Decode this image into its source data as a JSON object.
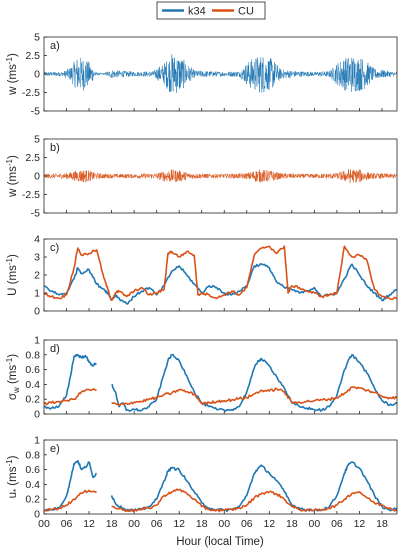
{
  "legend": {
    "entries": [
      {
        "name": "k34",
        "color": "#1f77b4"
      },
      {
        "name": "CU",
        "color": "#d95319"
      }
    ]
  },
  "xaxis": {
    "label": "Hour (local Time)",
    "ticks": [
      {
        "value": 0,
        "label": "00"
      },
      {
        "value": 6,
        "label": "06"
      },
      {
        "value": 12,
        "label": "12"
      },
      {
        "value": 18,
        "label": "18"
      },
      {
        "value": 24,
        "label": "00"
      },
      {
        "value": 30,
        "label": "06"
      },
      {
        "value": 36,
        "label": "12"
      },
      {
        "value": 42,
        "label": "18"
      },
      {
        "value": 48,
        "label": "00"
      },
      {
        "value": 54,
        "label": "06"
      },
      {
        "value": 60,
        "label": "12"
      },
      {
        "value": 66,
        "label": "18"
      },
      {
        "value": 72,
        "label": "00"
      },
      {
        "value": 78,
        "label": "06"
      },
      {
        "value": 84,
        "label": "12"
      },
      {
        "value": 90,
        "label": "18"
      }
    ],
    "range": [
      0,
      94
    ]
  },
  "colors": {
    "k34": "#1f77b4",
    "CU": "#d95319",
    "axis": "#262626"
  },
  "chart_data": [
    {
      "type": "line",
      "panel": "a)",
      "ylabel": "w (ms",
      "ylabel_sup": "-1",
      "ylabel_close": ")",
      "ylim": [
        -5,
        5
      ],
      "yticks": [
        -5,
        -2.5,
        0,
        2.5,
        5
      ],
      "ytick_labels": [
        "-5",
        "-2.5",
        "0",
        "2.5",
        "5"
      ],
      "series": [
        {
          "name": "k34",
          "kind": "turbulence",
          "envelope": [
            [
              0,
              0.3
            ],
            [
              5,
              0.3
            ],
            [
              7,
              0.9
            ],
            [
              9,
              2.4
            ],
            [
              11,
              2.2
            ],
            [
              13,
              1.0
            ],
            [
              14,
              0.2
            ],
            [
              16,
              0.1
            ],
            [
              17,
              0.4
            ],
            [
              18,
              0.6
            ],
            [
              19,
              0.5
            ],
            [
              22,
              0.4
            ],
            [
              25,
              0.3
            ],
            [
              29,
              0.4
            ],
            [
              32,
              1.5
            ],
            [
              34,
              2.8
            ],
            [
              36,
              2.6
            ],
            [
              38,
              1.5
            ],
            [
              40,
              0.5
            ],
            [
              44,
              0.4
            ],
            [
              48,
              0.3
            ],
            [
              52,
              0.4
            ],
            [
              55,
              2.0
            ],
            [
              58,
              2.7
            ],
            [
              61,
              2.0
            ],
            [
              63,
              0.7
            ],
            [
              67,
              0.4
            ],
            [
              72,
              0.3
            ],
            [
              76,
              0.4
            ],
            [
              79,
              2.0
            ],
            [
              82,
              2.6
            ],
            [
              85,
              2.2
            ],
            [
              88,
              0.7
            ],
            [
              92,
              0.4
            ],
            [
              94,
              0.3
            ]
          ]
        }
      ]
    },
    {
      "type": "line",
      "panel": "b)",
      "ylabel": "w (ms",
      "ylabel_sup": "-1",
      "ylabel_close": ")",
      "ylim": [
        -5,
        5
      ],
      "yticks": [
        -5,
        -2.5,
        0,
        2.5,
        5
      ],
      "ytick_labels": [
        "-5",
        "-2.5",
        "0",
        "2.5",
        "5"
      ],
      "series": [
        {
          "name": "CU",
          "kind": "turbulence",
          "envelope": [
            [
              0,
              0.3
            ],
            [
              6,
              0.4
            ],
            [
              9,
              0.8
            ],
            [
              11,
              0.9
            ],
            [
              14,
              0.4
            ],
            [
              18,
              0.3
            ],
            [
              24,
              0.3
            ],
            [
              30,
              0.4
            ],
            [
              33,
              0.9
            ],
            [
              36,
              0.8
            ],
            [
              39,
              0.4
            ],
            [
              44,
              0.3
            ],
            [
              48,
              0.3
            ],
            [
              54,
              0.4
            ],
            [
              57,
              0.9
            ],
            [
              60,
              0.8
            ],
            [
              63,
              0.4
            ],
            [
              68,
              0.3
            ],
            [
              72,
              0.3
            ],
            [
              78,
              0.4
            ],
            [
              81,
              1.0
            ],
            [
              84,
              0.9
            ],
            [
              87,
              0.4
            ],
            [
              94,
              0.3
            ]
          ]
        }
      ]
    },
    {
      "type": "line",
      "panel": "c)",
      "ylabel": "U (ms",
      "ylabel_sup": "-1",
      "ylabel_close": ")",
      "ylim": [
        0,
        4
      ],
      "yticks": [
        0,
        1,
        2,
        3,
        4
      ],
      "ytick_labels": [
        "0",
        "1",
        "2",
        "3",
        "4"
      ],
      "series": [
        {
          "name": "k34",
          "x": [
            0,
            2,
            4,
            6,
            8,
            9,
            10,
            12,
            14,
            16,
            17,
            18,
            19,
            20,
            22,
            24,
            26,
            28,
            30,
            32,
            34,
            36,
            38,
            40,
            42,
            44,
            46,
            48,
            50,
            52,
            54,
            56,
            58,
            60,
            62,
            64,
            66,
            68,
            70,
            72,
            74,
            76,
            78,
            80,
            82,
            84,
            86,
            88,
            90,
            92,
            94
          ],
          "values": [
            1.4,
            1.1,
            0.9,
            1.0,
            1.8,
            2.4,
            2.1,
            2.3,
            1.5,
            1.2,
            1.0,
            0.6,
            0.9,
            0.7,
            0.4,
            0.8,
            1.1,
            1.3,
            0.9,
            1.4,
            2.2,
            2.5,
            2.0,
            1.5,
            1.0,
            1.4,
            1.3,
            1.0,
            0.9,
            1.1,
            1.4,
            2.5,
            2.6,
            2.4,
            1.6,
            1.3,
            1.2,
            1.0,
            1.1,
            1.3,
            0.8,
            0.9,
            1.0,
            1.8,
            2.6,
            2.0,
            1.4,
            1.0,
            0.6,
            0.9,
            1.2
          ]
        },
        {
          "name": "CU",
          "x": [
            0,
            2,
            4,
            6,
            8,
            9,
            10,
            12,
            14,
            16,
            17,
            18,
            19,
            20,
            22,
            24,
            26,
            28,
            30,
            32,
            33,
            34,
            36,
            38,
            40,
            41,
            42,
            44,
            46,
            48,
            50,
            52,
            54,
            56,
            58,
            60,
            62,
            64,
            65,
            66,
            68,
            70,
            72,
            74,
            76,
            78,
            80,
            82,
            84,
            86,
            88,
            90,
            92,
            94
          ],
          "values": [
            1.0,
            0.8,
            0.7,
            0.9,
            2.4,
            3.5,
            3.1,
            3.2,
            3.4,
            1.8,
            1.2,
            0.6,
            1.0,
            1.1,
            0.8,
            1.1,
            1.3,
            0.9,
            1.0,
            1.2,
            3.2,
            3.3,
            3.0,
            3.3,
            3.1,
            0.9,
            1.0,
            0.9,
            0.7,
            0.9,
            1.1,
            0.9,
            1.3,
            3.1,
            3.5,
            3.6,
            3.2,
            3.6,
            1.0,
            1.4,
            1.3,
            1.1,
            1.0,
            0.8,
            0.9,
            1.0,
            3.6,
            3.0,
            3.1,
            2.8,
            1.2,
            0.8,
            0.7,
            0.7
          ]
        }
      ]
    },
    {
      "type": "line",
      "panel": "d)",
      "ylabel": "σ",
      "ylabel_sub": "w",
      "ylabel_rest": " (ms",
      "ylabel_sup": "-1",
      "ylabel_close": ")",
      "ylim": [
        0,
        1
      ],
      "yticks": [
        0,
        0.2,
        0.4,
        0.6,
        0.8,
        1
      ],
      "ytick_labels": [
        "0",
        "0.2",
        "0.4",
        "0.6",
        "0.8",
        "1"
      ],
      "series": [
        {
          "name": "k34",
          "x": [
            0,
            2,
            4,
            6,
            7,
            8,
            9,
            10,
            11,
            12,
            13,
            14,
            16,
            18,
            19,
            20,
            21,
            22,
            24,
            26,
            28,
            30,
            32,
            33,
            34,
            36,
            38,
            40,
            42,
            44,
            46,
            48,
            50,
            52,
            54,
            56,
            57,
            58,
            60,
            62,
            64,
            66,
            68,
            70,
            72,
            74,
            76,
            78,
            80,
            81,
            82,
            84,
            86,
            88,
            90,
            92,
            94
          ],
          "values": [
            0.1,
            0.08,
            0.1,
            0.25,
            0.5,
            0.78,
            0.8,
            0.76,
            0.79,
            0.7,
            0.66,
            0.68,
            null,
            0.4,
            0.3,
            0.1,
            0.15,
            0.05,
            0.06,
            0.05,
            0.1,
            0.2,
            0.55,
            0.72,
            0.8,
            0.72,
            0.52,
            0.3,
            0.15,
            0.1,
            0.06,
            0.05,
            0.06,
            0.1,
            0.3,
            0.62,
            0.72,
            0.74,
            0.65,
            0.5,
            0.35,
            0.15,
            0.1,
            0.08,
            0.06,
            0.05,
            0.1,
            0.25,
            0.6,
            0.72,
            0.8,
            0.7,
            0.55,
            0.35,
            0.18,
            0.12,
            0.15
          ]
        },
        {
          "name": "CU",
          "x": [
            0,
            2,
            4,
            6,
            8,
            10,
            12,
            14,
            16,
            18,
            20,
            22,
            24,
            26,
            28,
            30,
            32,
            34,
            36,
            38,
            40,
            42,
            44,
            46,
            48,
            50,
            52,
            54,
            56,
            58,
            60,
            62,
            64,
            66,
            68,
            70,
            72,
            74,
            76,
            78,
            80,
            82,
            84,
            86,
            88,
            90,
            92,
            94
          ],
          "values": [
            0.14,
            0.15,
            0.17,
            0.18,
            0.2,
            0.3,
            0.33,
            0.32,
            null,
            0.15,
            0.12,
            0.14,
            0.16,
            0.17,
            0.2,
            0.22,
            0.26,
            0.28,
            0.33,
            0.3,
            0.27,
            0.14,
            0.15,
            0.17,
            0.18,
            0.19,
            0.21,
            0.22,
            0.27,
            0.32,
            0.31,
            0.34,
            0.3,
            0.15,
            0.16,
            0.17,
            0.18,
            0.19,
            0.2,
            0.22,
            0.28,
            0.36,
            0.35,
            0.32,
            0.29,
            0.24,
            0.22,
            0.22
          ]
        }
      ]
    },
    {
      "type": "line",
      "panel": "e)",
      "ylabel": "u",
      "ylabel_sub": "*",
      "ylabel_rest": " (ms",
      "ylabel_sup": "-1",
      "ylabel_close": ")",
      "ylim": [
        0,
        1
      ],
      "yticks": [
        0,
        0.2,
        0.4,
        0.6,
        0.8,
        1
      ],
      "ytick_labels": [
        "0",
        "0.2",
        "0.4",
        "0.6",
        "0.8",
        "1"
      ],
      "series": [
        {
          "name": "k34",
          "x": [
            0,
            2,
            4,
            6,
            7,
            8,
            9,
            10,
            11,
            12,
            13,
            14,
            16,
            18,
            19,
            20,
            21,
            22,
            24,
            26,
            28,
            30,
            32,
            33,
            34,
            36,
            38,
            40,
            42,
            44,
            46,
            48,
            50,
            52,
            54,
            56,
            57,
            58,
            60,
            62,
            64,
            66,
            68,
            70,
            72,
            74,
            76,
            78,
            80,
            81,
            82,
            84,
            86,
            88,
            90,
            92,
            94
          ],
          "values": [
            0.05,
            0.06,
            0.08,
            0.25,
            0.45,
            0.68,
            0.72,
            0.6,
            0.63,
            0.7,
            0.5,
            0.55,
            null,
            0.25,
            0.15,
            0.1,
            0.08,
            0.05,
            0.05,
            0.06,
            0.1,
            0.2,
            0.45,
            0.58,
            0.62,
            0.6,
            0.45,
            0.3,
            0.15,
            0.08,
            0.06,
            0.05,
            0.06,
            0.1,
            0.25,
            0.55,
            0.62,
            0.65,
            0.55,
            0.45,
            0.3,
            0.12,
            0.08,
            0.06,
            0.05,
            0.06,
            0.1,
            0.25,
            0.55,
            0.66,
            0.7,
            0.62,
            0.45,
            0.25,
            0.1,
            0.05,
            0.08
          ]
        },
        {
          "name": "CU",
          "x": [
            0,
            2,
            4,
            6,
            8,
            10,
            12,
            14,
            16,
            18,
            20,
            22,
            24,
            26,
            28,
            30,
            32,
            34,
            36,
            38,
            40,
            42,
            44,
            46,
            48,
            50,
            52,
            54,
            56,
            58,
            60,
            62,
            64,
            66,
            68,
            70,
            72,
            74,
            76,
            78,
            80,
            82,
            84,
            86,
            88,
            90,
            92,
            94
          ],
          "values": [
            0.05,
            0.06,
            0.08,
            0.12,
            0.2,
            0.28,
            0.32,
            0.3,
            null,
            0.1,
            0.07,
            0.05,
            0.05,
            0.06,
            0.08,
            0.12,
            0.25,
            0.3,
            0.33,
            0.28,
            0.2,
            0.1,
            0.06,
            0.05,
            0.05,
            0.06,
            0.08,
            0.12,
            0.22,
            0.28,
            0.3,
            0.27,
            0.2,
            0.1,
            0.06,
            0.05,
            0.05,
            0.06,
            0.08,
            0.12,
            0.2,
            0.28,
            0.3,
            0.22,
            0.15,
            0.12,
            0.08,
            0.05
          ]
        }
      ]
    }
  ]
}
